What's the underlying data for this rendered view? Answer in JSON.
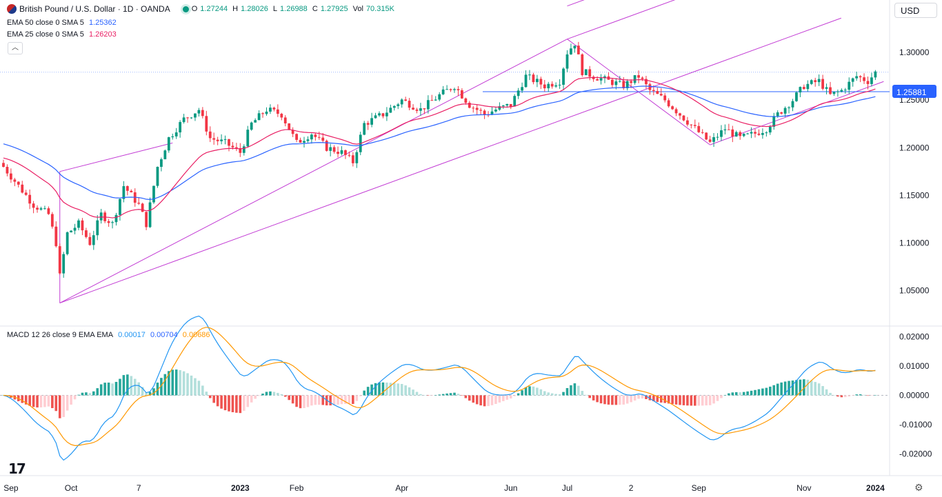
{
  "header": {
    "symbol": "British Pound / U.S. Dollar · 1D · OANDA",
    "o_label": "O",
    "o_value": "1.27244",
    "h_label": "H",
    "h_value": "1.28026",
    "l_label": "L",
    "l_value": "1.26988",
    "c_label": "C",
    "c_value": "1.27925",
    "vol_label": "Vol",
    "vol_value": "70.315K"
  },
  "indicators": {
    "ema50_label": "EMA 50 close 0 SMA 5",
    "ema50_value": "1.25362",
    "ema25_label": "EMA 25 close 0 SMA 5",
    "ema25_value": "1.26203",
    "macd_label": "MACD 12 26 close 9 EMA EMA",
    "macd_hist": "0.00017",
    "macd_line": "0.00704",
    "macd_signal": "0.00686"
  },
  "currency_button": "USD",
  "collapse_icon": "chevron-up-icon",
  "logo_text": "TV",
  "settings_icon": "gear-icon",
  "colors": {
    "up": "#089981",
    "down": "#f23645",
    "ema50": "#2962ff",
    "ema25": "#e91e63",
    "pitchfork": "#c23bd4",
    "hline": "#2962ff",
    "macd": "#2196f3",
    "signal": "#ff9800",
    "hist_up_strong": "#26a69a",
    "hist_up_weak": "#b2dfdb",
    "hist_down_strong": "#ef5350",
    "hist_down_weak": "#ffcdd2"
  },
  "chart_data": [
    {
      "type": "candlestick",
      "title": "British Pound / U.S. Dollar · 1D · OANDA",
      "x_tick_labels": [
        "Sep",
        "Oct",
        "7",
        "2023",
        "Feb",
        "Apr",
        "Jun",
        "Jul",
        "2",
        "Sep",
        "Nov",
        "2024"
      ],
      "y_ticks": [
        1.05,
        1.1,
        1.15,
        1.2,
        1.25,
        1.3
      ],
      "y_tick_labels": [
        "1.05000",
        "1.10000",
        "1.15000",
        "1.20000",
        "1.25000",
        "1.30000"
      ],
      "ylim": [
        1.015,
        1.355
      ],
      "price_line": 1.27925,
      "horizontal_line": {
        "value": 1.25881,
        "label": "1.25881"
      },
      "price_path": [
        [
          0,
          1.18
        ],
        [
          4,
          1.16
        ],
        [
          8,
          1.14
        ],
        [
          12,
          1.13
        ],
        [
          14,
          1.1
        ],
        [
          15,
          1.065
        ],
        [
          17,
          1.11
        ],
        [
          20,
          1.12
        ],
        [
          23,
          1.1
        ],
        [
          26,
          1.13
        ],
        [
          29,
          1.12
        ],
        [
          32,
          1.16
        ],
        [
          36,
          1.14
        ],
        [
          38,
          1.12
        ],
        [
          41,
          1.18
        ],
        [
          44,
          1.21
        ],
        [
          48,
          1.23
        ],
        [
          52,
          1.24
        ],
        [
          55,
          1.21
        ],
        [
          59,
          1.205
        ],
        [
          63,
          1.195
        ],
        [
          66,
          1.225
        ],
        [
          70,
          1.24
        ],
        [
          74,
          1.235
        ],
        [
          78,
          1.205
        ],
        [
          82,
          1.215
        ],
        [
          86,
          1.2
        ],
        [
          90,
          1.195
        ],
        [
          93,
          1.185
        ],
        [
          96,
          1.225
        ],
        [
          101,
          1.235
        ],
        [
          106,
          1.25
        ],
        [
          111,
          1.24
        ],
        [
          116,
          1.255
        ],
        [
          120,
          1.265
        ],
        [
          124,
          1.245
        ],
        [
          128,
          1.235
        ],
        [
          131,
          1.24
        ],
        [
          135,
          1.245
        ],
        [
          139,
          1.275
        ],
        [
          144,
          1.265
        ],
        [
          148,
          1.27
        ],
        [
          150,
          1.3
        ],
        [
          152,
          1.31
        ],
        [
          154,
          1.28
        ],
        [
          157,
          1.275
        ],
        [
          161,
          1.27
        ],
        [
          165,
          1.265
        ],
        [
          169,
          1.275
        ],
        [
          172,
          1.26
        ],
        [
          176,
          1.25
        ],
        [
          180,
          1.235
        ],
        [
          184,
          1.22
        ],
        [
          188,
          1.205
        ],
        [
          192,
          1.22
        ],
        [
          196,
          1.21
        ],
        [
          200,
          1.215
        ],
        [
          203,
          1.22
        ],
        [
          206,
          1.235
        ],
        [
          210,
          1.25
        ],
        [
          213,
          1.265
        ],
        [
          217,
          1.27
        ],
        [
          220,
          1.255
        ],
        [
          223,
          1.26
        ],
        [
          227,
          1.275
        ],
        [
          230,
          1.27
        ],
        [
          232,
          1.279
        ]
      ],
      "pitchfork": {
        "pivot": [
          15,
          1.037
        ],
        "a": [
          150,
          1.314
        ],
        "b": [
          188,
          1.203
        ]
      },
      "ema50_label": "EMA 50 close 0 SMA 5",
      "ema25_label": "EMA 25 close 0 SMA 5"
    },
    {
      "type": "macd",
      "title": "MACD 12 26 close 9 EMA EMA",
      "y_ticks": [
        -0.02,
        -0.01,
        0.0,
        0.01,
        0.02
      ],
      "y_tick_labels": [
        "-0.02000",
        "-0.01000",
        "0.00000",
        "0.01000",
        "0.02000"
      ],
      "ylim": [
        -0.027,
        0.023
      ],
      "last_values": {
        "histogram": 0.00017,
        "macd": 0.00704,
        "signal": 0.00686
      }
    }
  ]
}
